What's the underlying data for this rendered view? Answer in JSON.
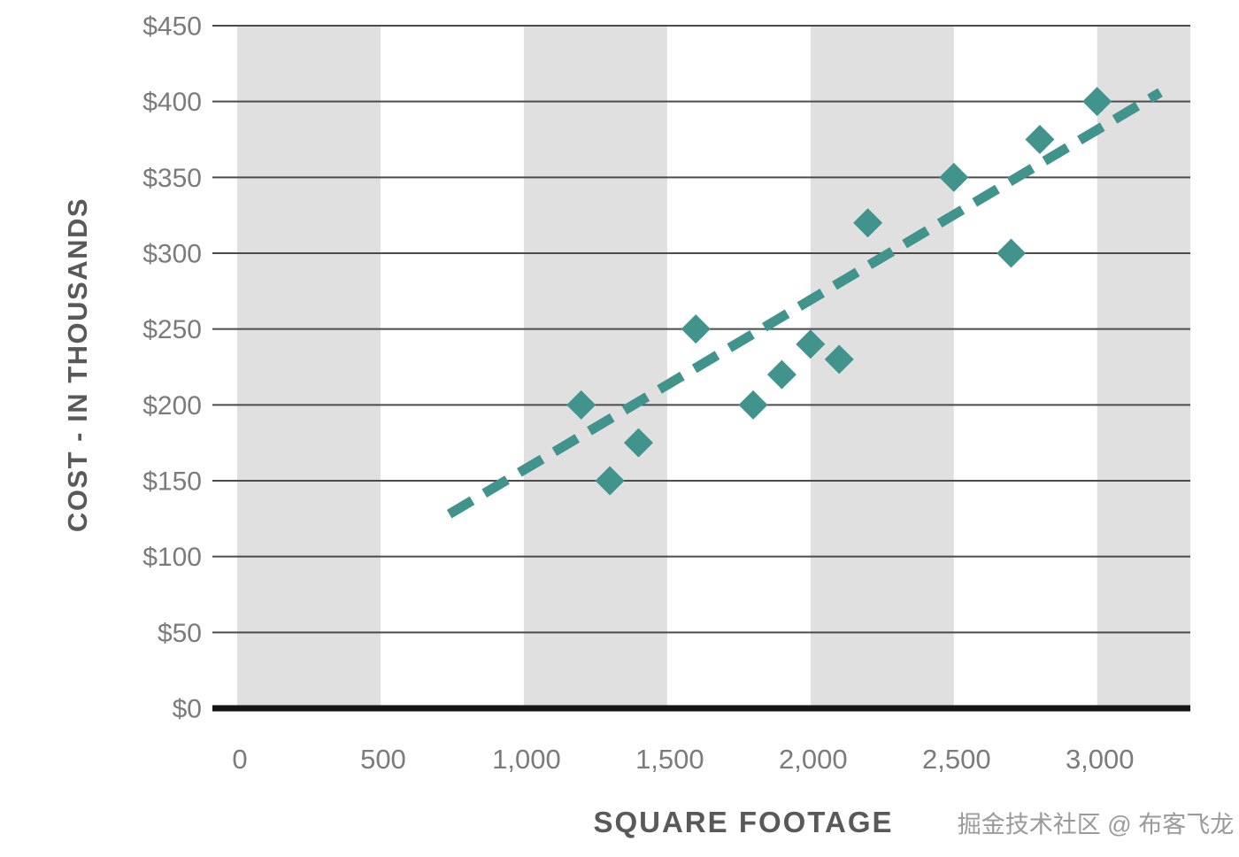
{
  "page": {
    "background": "#ffffff"
  },
  "chart_data": {
    "type": "scatter",
    "title": "",
    "xlabel": "SQUARE FOOTAGE",
    "ylabel": "COST - IN THOUSANDS",
    "xlim": [
      0,
      3325
    ],
    "ylim": [
      0,
      450
    ],
    "grid": "horizontal gridlines every 50 on y; alternating vertical shaded bands every 500 on x",
    "legend": "none",
    "x_ticks": [
      {
        "value": 0,
        "label": "0"
      },
      {
        "value": 500,
        "label": "500"
      },
      {
        "value": 1000,
        "label": "1,000"
      },
      {
        "value": 1500,
        "label": "1,500"
      },
      {
        "value": 2000,
        "label": "2,000"
      },
      {
        "value": 2500,
        "label": "2,500"
      },
      {
        "value": 3000,
        "label": "3,000"
      }
    ],
    "y_ticks": [
      {
        "value": 0,
        "label": "$0"
      },
      {
        "value": 50,
        "label": "$50"
      },
      {
        "value": 100,
        "label": "$100"
      },
      {
        "value": 150,
        "label": "$150"
      },
      {
        "value": 200,
        "label": "$200"
      },
      {
        "value": 250,
        "label": "$250"
      },
      {
        "value": 300,
        "label": "$300"
      },
      {
        "value": 350,
        "label": "$350"
      },
      {
        "value": 400,
        "label": "$400"
      },
      {
        "value": 450,
        "label": "$450"
      }
    ],
    "points": [
      [
        1200,
        200
      ],
      [
        1300,
        150
      ],
      [
        1400,
        175
      ],
      [
        1600,
        250
      ],
      [
        1800,
        200
      ],
      [
        1900,
        220
      ],
      [
        2000,
        240
      ],
      [
        2100,
        230
      ],
      [
        2200,
        320
      ],
      [
        2500,
        350
      ],
      [
        2700,
        300
      ],
      [
        2800,
        375
      ],
      [
        3000,
        400
      ]
    ],
    "trendline": {
      "style": "dashed",
      "x1": 740,
      "y1": 128,
      "x2": 3220,
      "y2": 406
    },
    "bands": [
      [
        0,
        500
      ],
      [
        1000,
        1500
      ],
      [
        2000,
        2500
      ],
      [
        3000,
        3325
      ]
    ],
    "colors": {
      "marker": "#40948b",
      "trend": "#40948b",
      "band": "#e0e0e0",
      "gridline": "#4b4b4b",
      "axis_line": "#151515",
      "tick_label": "#7b7b7b",
      "axis_title": "#595959",
      "watermark": "#9a9a9a"
    }
  },
  "watermark": {
    "text": "掘金技术社区 @ 布客飞龙"
  }
}
